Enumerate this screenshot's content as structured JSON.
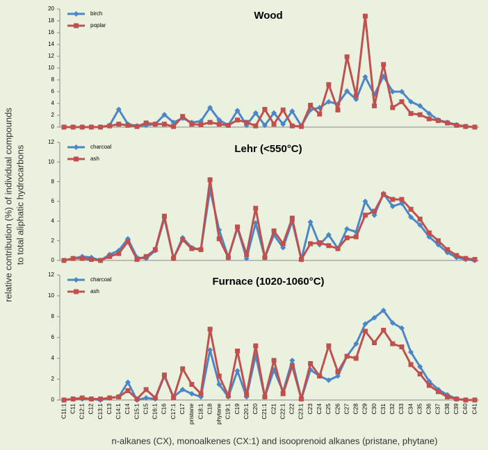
{
  "chart_data": [
    {
      "type": "line",
      "title": "Wood",
      "ylim": [
        0,
        20
      ],
      "yticks": [
        0,
        2,
        4,
        6,
        8,
        10,
        12,
        14,
        16,
        18,
        20
      ],
      "series": [
        {
          "name": "birch",
          "color": "#4a86c8",
          "marker": "diamond",
          "values": [
            0,
            0,
            0,
            0,
            0,
            0.3,
            3.0,
            0.5,
            0.2,
            0.3,
            0.5,
            2.1,
            0.8,
            1.5,
            0.8,
            1.0,
            3.3,
            1.2,
            0.3,
            2.8,
            0.3,
            2.4,
            0.3,
            2.4,
            0.5,
            2.7,
            0.2,
            2.9,
            3.3,
            4.3,
            3.9,
            6.1,
            4.7,
            8.5,
            5.5,
            8.6,
            6.0,
            6.0,
            4.3,
            3.6,
            2.3,
            1.2,
            0.8,
            0.4,
            0.1,
            0
          ]
        },
        {
          "name": "poplar",
          "color": "#c0504d",
          "marker": "square",
          "values": [
            0,
            0,
            0,
            0,
            0,
            0.2,
            0.5,
            0.3,
            0.1,
            0.7,
            0.5,
            0.5,
            0.1,
            1.8,
            0.5,
            0.4,
            0.8,
            0.5,
            0.3,
            1.2,
            0.8,
            0.2,
            3.0,
            0.5,
            2.9,
            0.2,
            0.1,
            3.7,
            2.2,
            7.2,
            2.9,
            11.9,
            5.3,
            18.8,
            3.6,
            10.6,
            3.3,
            4.3,
            2.3,
            2.1,
            1.4,
            1.1,
            0.7,
            0.3,
            0.1,
            0
          ]
        }
      ]
    },
    {
      "type": "line",
      "title": "Lehr (<550°C)",
      "ylim": [
        0,
        12
      ],
      "yticks": [
        0,
        2,
        4,
        6,
        8,
        10,
        12
      ],
      "ylabel": [
        "relative contribution (%) of individual compounds",
        "to total aliphatic hydrocarbons"
      ],
      "series": [
        {
          "name": "charcoal",
          "color": "#4a86c8",
          "marker": "diamond",
          "values": [
            0,
            0.2,
            0.4,
            0.3,
            0,
            0.6,
            1.0,
            2.2,
            0.3,
            0.2,
            1.0,
            4.3,
            0.2,
            2.3,
            1.3,
            1.1,
            7.2,
            3.1,
            0.3,
            3.3,
            0.2,
            3.8,
            0.3,
            2.6,
            1.3,
            4.0,
            0.1,
            3.9,
            1.6,
            2.6,
            1.2,
            3.2,
            2.9,
            6.0,
            4.6,
            6.8,
            5.5,
            5.8,
            4.4,
            3.6,
            2.4,
            1.6,
            0.8,
            0.3,
            0.1,
            0
          ]
        },
        {
          "name": "ash",
          "color": "#c0504d",
          "marker": "square",
          "values": [
            0,
            0.2,
            0.2,
            0.1,
            0,
            0.4,
            0.7,
            1.9,
            0.1,
            0.4,
            1.1,
            4.5,
            0.2,
            2.1,
            1.2,
            1.1,
            8.2,
            2.2,
            0.3,
            3.4,
            0.6,
            5.3,
            0.3,
            3.0,
            1.7,
            4.3,
            0.1,
            1.7,
            1.8,
            1.5,
            1.2,
            2.3,
            2.4,
            4.6,
            5.0,
            6.7,
            6.2,
            6.2,
            5.2,
            4.2,
            2.8,
            2.0,
            1.1,
            0.5,
            0.2,
            0.1
          ]
        }
      ]
    },
    {
      "type": "line",
      "title": "Furnace (1020-1060°C)",
      "ylim": [
        0,
        12
      ],
      "yticks": [
        0,
        2,
        4,
        6,
        8,
        10,
        12
      ],
      "xlabel": "n-alkanes (CX), monoalkenes (CX:1) and isooprenoid alkanes (pristane, phytane)",
      "categories": [
        "C11:1",
        "C11",
        "C12:1",
        "C12",
        "C13:1",
        "C13",
        "C14:1",
        "C14",
        "C15:1",
        "C15",
        "C16:1",
        "C16",
        "C17:1",
        "C17",
        "pristane",
        "C18:1",
        "C18",
        "phytane",
        "C19:1",
        "C19",
        "C20:1",
        "C20",
        "C21:1",
        "C21",
        "C22:1",
        "C22",
        "C23:1",
        "C23",
        "C24",
        "C25",
        "C26",
        "C27",
        "C28",
        "C29",
        "C30",
        "C31",
        "C32",
        "C33",
        "C34",
        "C35",
        "C36",
        "C37",
        "C38",
        "C39",
        "C40",
        "C41"
      ],
      "series": [
        {
          "name": "charcoal",
          "color": "#4a86c8",
          "marker": "diamond",
          "values": [
            0,
            0.1,
            0.1,
            0.1,
            0,
            0.2,
            0.3,
            1.7,
            0,
            0.2,
            0.1,
            2.3,
            0.3,
            1.0,
            0.6,
            0.3,
            4.8,
            1.5,
            0.3,
            2.8,
            0.3,
            4.3,
            0.3,
            2.9,
            0.8,
            3.8,
            0.1,
            2.9,
            2.3,
            1.9,
            2.3,
            4.2,
            5.4,
            7.3,
            7.9,
            8.6,
            7.4,
            6.9,
            4.6,
            3.2,
            1.8,
            1.0,
            0.5,
            0.1,
            0,
            0
          ]
        },
        {
          "name": "ash",
          "color": "#c0504d",
          "marker": "square",
          "values": [
            0,
            0.1,
            0.2,
            0.1,
            0.1,
            0.2,
            0.3,
            0.9,
            0.1,
            1.0,
            0.2,
            2.4,
            0.2,
            3.0,
            1.5,
            0.6,
            6.8,
            2.3,
            0.4,
            4.7,
            0.5,
            5.2,
            0.3,
            3.8,
            0.6,
            3.3,
            0.1,
            3.5,
            2.3,
            5.2,
            2.7,
            4.2,
            4.0,
            6.6,
            5.5,
            6.7,
            5.4,
            5.1,
            3.4,
            2.5,
            1.4,
            0.8,
            0.3,
            0.1,
            0,
            0
          ]
        }
      ]
    }
  ]
}
